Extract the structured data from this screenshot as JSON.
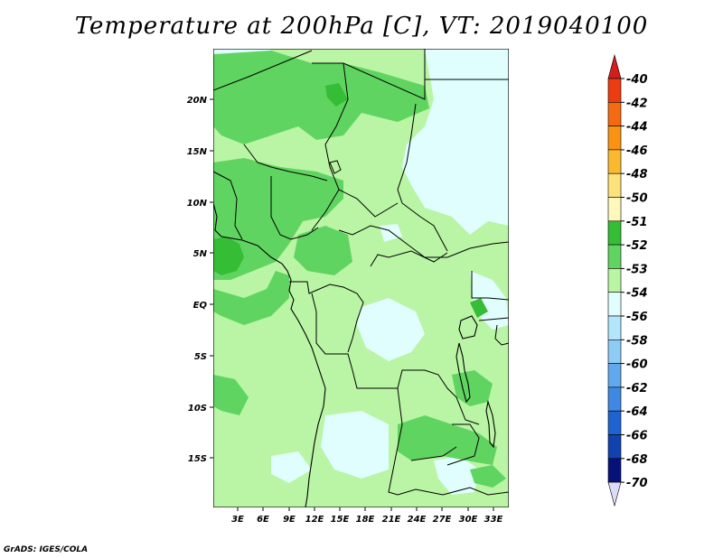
{
  "title": "Temperature at 200hPa [C], VT: 2019040100",
  "credit": "GrADS: IGES/COLA",
  "map": {
    "lat_labels": [
      "20N",
      "15N",
      "10N",
      "5N",
      "EQ",
      "5S",
      "10S",
      "15S"
    ],
    "lon_labels": [
      "3E",
      "6E",
      "9E",
      "12E",
      "15E",
      "18E",
      "21E",
      "24E",
      "27E",
      "30E",
      "33E"
    ]
  },
  "colorbar": {
    "labels": [
      "-40",
      "-42",
      "-44",
      "-46",
      "-48",
      "-50",
      "-51",
      "-52",
      "-53",
      "-54",
      "-56",
      "-58",
      "-60",
      "-62",
      "-64",
      "-66",
      "-68",
      "-70"
    ],
    "colors": [
      "#d31e1e",
      "#ee3c12",
      "#f56a10",
      "#fa9214",
      "#fbb931",
      "#fde27c",
      "#fff8bd",
      "#36bd36",
      "#60d460",
      "#b9f5a4",
      "#e0fefe",
      "#b4e6fb",
      "#8ecbf5",
      "#61a9ee",
      "#3f89e2",
      "#1f63d0",
      "#1142ad",
      "#06127a",
      "#dcdcf9"
    ]
  }
}
